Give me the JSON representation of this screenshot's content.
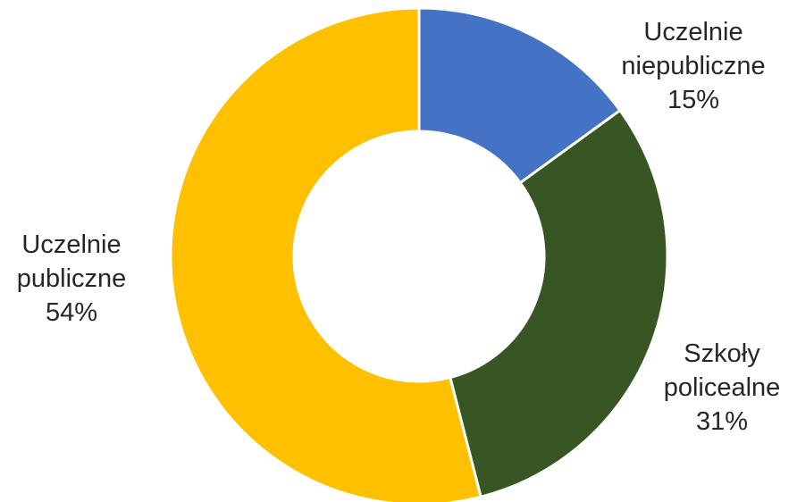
{
  "chart_data": {
    "type": "pie",
    "donut": true,
    "title": "",
    "slices": [
      {
        "label": [
          "Uczelnie",
          "niepubliczne"
        ],
        "value": 15,
        "display": "15%",
        "color": "#4472C4"
      },
      {
        "label": [
          "Szkoły",
          "policealne"
        ],
        "value": 31,
        "display": "31%",
        "color": "#375623"
      },
      {
        "label": [
          "Uczelnie",
          "publiczne"
        ],
        "value": 54,
        "display": "54%",
        "color": "#FFC000"
      }
    ],
    "legend": "none",
    "label_placement": "outside"
  }
}
